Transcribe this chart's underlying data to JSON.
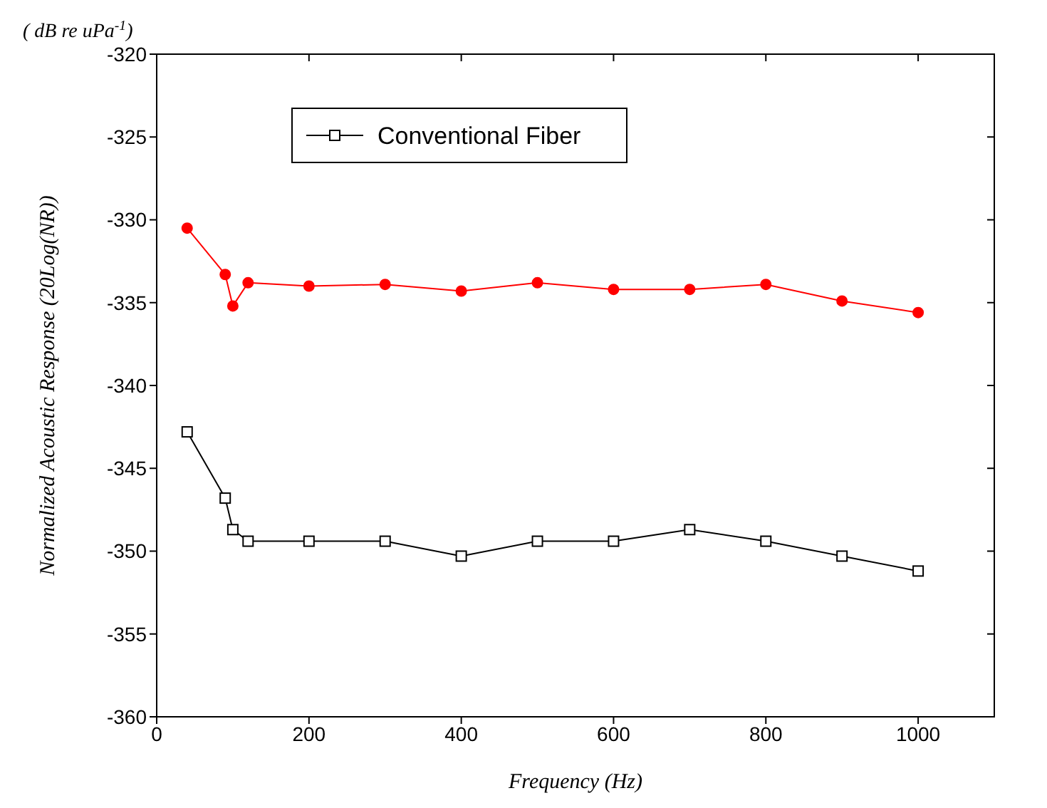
{
  "chart_data": {
    "type": "line",
    "xlabel": "Frequency (Hz)",
    "ylabel": "Normalized Acoustic Response  (20Log(NR))",
    "annotations": [
      "( dB re uPa$^{-1}$)"
    ],
    "xlim": [
      0,
      1100
    ],
    "xticks": [
      0,
      200,
      400,
      600,
      800,
      1000
    ],
    "ylim": [
      -360,
      -320
    ],
    "yticks": [
      -360,
      -355,
      -350,
      -345,
      -340,
      -335,
      -330,
      -325,
      -320
    ],
    "grid": false,
    "legend": "top left",
    "x": [
      40,
      90,
      100,
      120,
      200,
      300,
      400,
      500,
      600,
      700,
      800,
      900,
      1000
    ],
    "series": [
      {
        "name": "Conventional Fiber",
        "color": "#000000",
        "marker": "square",
        "values": [
          -342.8,
          -346.8,
          -348.7,
          -349.4,
          -349.4,
          -349.4,
          -350.3,
          -349.4,
          -349.4,
          -348.7,
          -349.4,
          -350.3,
          -351.2
        ]
      },
      {
        "color": "#ff0000",
        "marker": "circle",
        "values": [
          -330.5,
          -333.3,
          -335.2,
          -333.8,
          -334.0,
          -333.9,
          -334.3,
          -333.8,
          -334.2,
          -334.2,
          -333.9,
          -334.9,
          -335.6
        ]
      }
    ]
  }
}
